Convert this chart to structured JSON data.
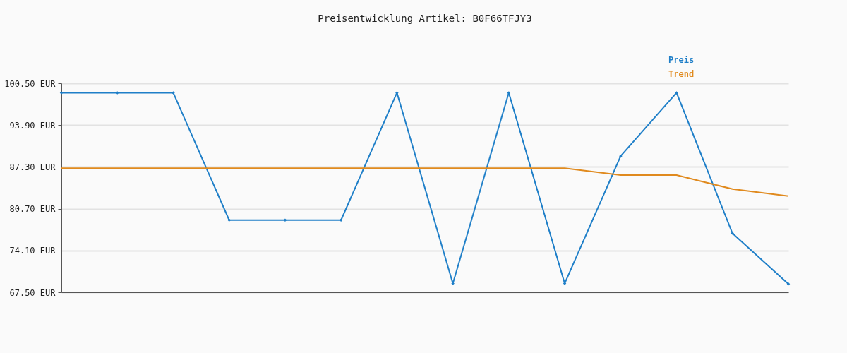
{
  "chart_data": {
    "type": "line",
    "title": "Preisentwicklung Artikel: B0F66TFJY3",
    "categories": [
      null,
      null,
      null,
      null,
      null,
      null,
      null,
      null,
      null,
      null,
      null,
      null,
      null,
      null
    ],
    "series": [
      {
        "name": "Preis",
        "color": "#1f7fc8",
        "marker": "diamond",
        "values": [
          99.0,
          99.0,
          99.0,
          78.9,
          78.9,
          78.9,
          99.0,
          68.9,
          99.0,
          68.9,
          89.0,
          99.0,
          76.8,
          68.8
        ]
      },
      {
        "name": "Trend",
        "color": "#e08a1e",
        "marker": "none",
        "values": [
          87.1,
          87.1,
          87.1,
          87.1,
          87.1,
          87.1,
          87.1,
          87.1,
          87.1,
          87.1,
          86.0,
          86.0,
          83.8,
          82.7
        ]
      }
    ],
    "ylim": [
      67.5,
      100.5
    ],
    "yticks": [
      {
        "value": 67.5,
        "label": "67.50 EUR"
      },
      {
        "value": 74.1,
        "label": "74.10 EUR"
      },
      {
        "value": 80.7,
        "label": "80.70 EUR"
      },
      {
        "value": 87.3,
        "label": "87.30 EUR"
      },
      {
        "value": 93.9,
        "label": "93.90 EUR"
      },
      {
        "value": 100.5,
        "label": "100.50 EUR"
      }
    ],
    "grid": "y",
    "legend": "top right",
    "tick_labels": "y"
  }
}
